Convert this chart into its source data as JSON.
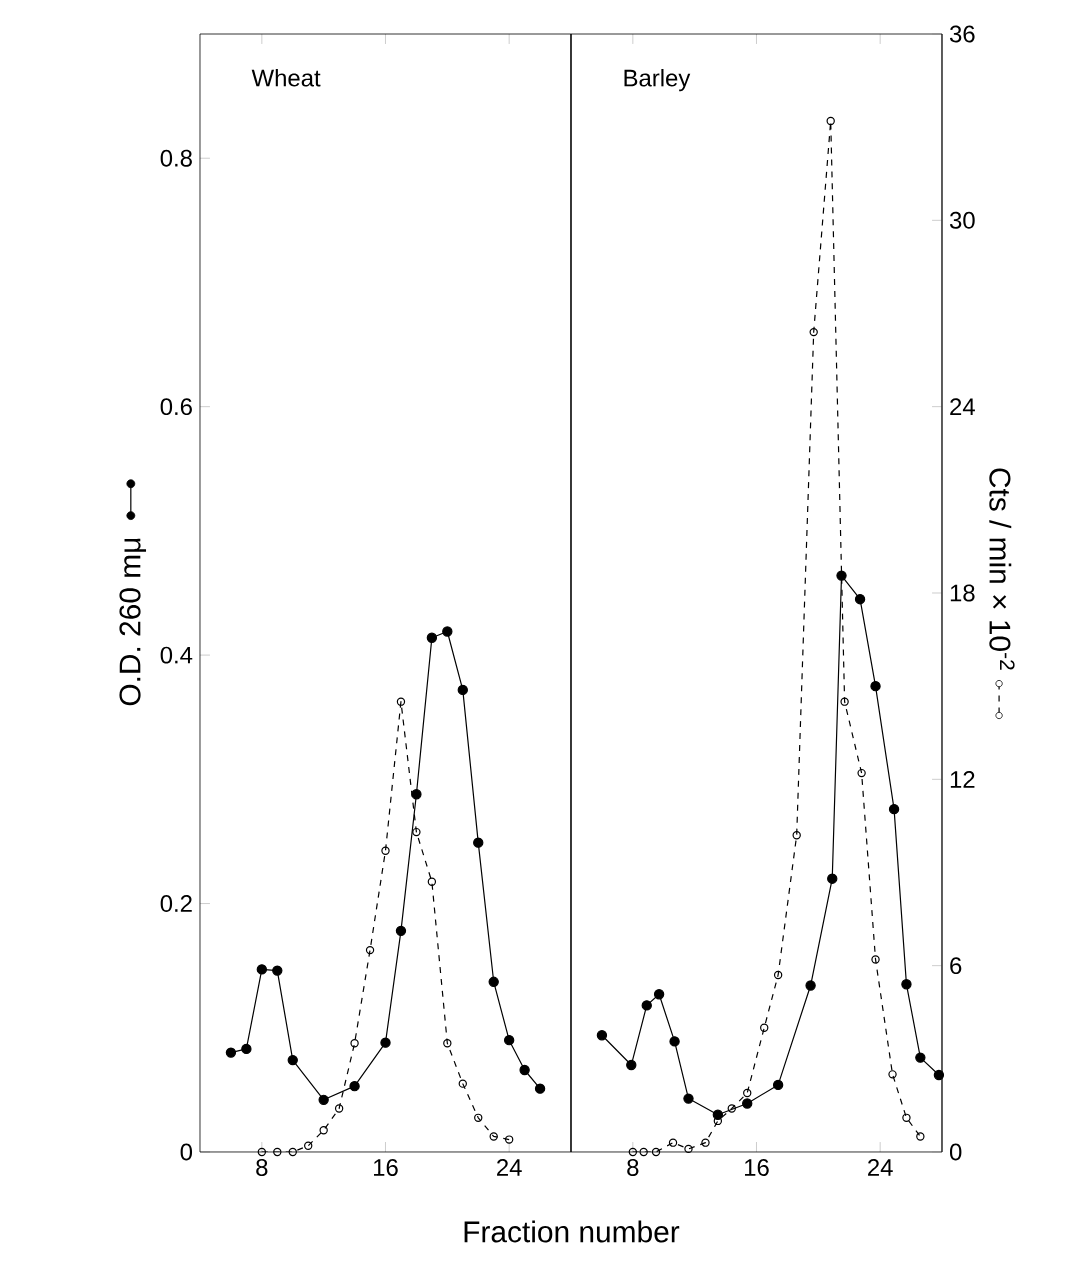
{
  "chart_data": [
    {
      "type": "line",
      "title": "Wheat",
      "xlabel": "Fraction number",
      "ylabel": "O.D. 260 mμ",
      "xlim": [
        4,
        28
      ],
      "xticks": [
        8,
        16,
        24
      ],
      "ylim": [
        0,
        0.9
      ],
      "yticks": [
        0,
        0.2,
        0.4,
        0.6,
        0.8
      ],
      "y2lim": [
        0,
        36
      ],
      "tick_labels": [
        "x",
        "y"
      ],
      "series": [
        {
          "color": "#000000",
          "marker": "circle",
          "line_style": "solid",
          "x": [
            6,
            7,
            8,
            9,
            10,
            12,
            14,
            16,
            17,
            18,
            19,
            20,
            21,
            22,
            23,
            24,
            25,
            26
          ],
          "values": [
            0.08,
            0.083,
            0.147,
            0.146,
            0.074,
            0.042,
            0.053,
            0.088,
            0.178,
            0.288,
            0.414,
            0.419,
            0.372,
            0.249,
            0.137,
            0.09,
            0.066,
            0.051
          ]
        },
        {
          "color": "#000000",
          "marker": "circle",
          "line_style": "dashed",
          "axis": "y2",
          "x": [
            8,
            9,
            10,
            11,
            12,
            13,
            14,
            15,
            16,
            17,
            18,
            19,
            20,
            21,
            22,
            23,
            24
          ],
          "values": [
            0,
            0,
            0,
            0.2,
            0.7,
            1.4,
            3.5,
            6.5,
            9.7,
            14.5,
            10.3,
            8.7,
            3.5,
            2.2,
            1.1,
            0.5,
            0.4
          ]
        }
      ]
    },
    {
      "type": "line",
      "title": "Barley",
      "y2label": "Cts / min × 10$^{-2}$",
      "xlim": [
        4,
        28
      ],
      "xticks": [
        8,
        16,
        24
      ],
      "ylim": [
        0,
        0.9
      ],
      "y2lim": [
        0,
        36
      ],
      "y2ticks": [
        0,
        6,
        12,
        18,
        24,
        30,
        36
      ],
      "tick_labels": [
        "x",
        "y2"
      ],
      "series": [
        {
          "color": "#000000",
          "marker": "circle",
          "line_style": "solid",
          "x": [
            6,
            7.9,
            8.9,
            9.7,
            10.7,
            11.6,
            13.5,
            15.4,
            17.4,
            19.5,
            20.9,
            21.5,
            22.7,
            23.7,
            24.9,
            25.7,
            26.6,
            27.8
          ],
          "values": [
            0.094,
            0.07,
            0.118,
            0.127,
            0.089,
            0.043,
            0.03,
            0.039,
            0.054,
            0.134,
            0.22,
            0.464,
            0.445,
            0.375,
            0.276,
            0.135,
            0.076,
            0.062
          ]
        },
        {
          "color": "#000000",
          "marker": "circle",
          "line_style": "dashed",
          "axis": "y2",
          "x": [
            8,
            8.7,
            9.5,
            10.6,
            11.6,
            12.7,
            13.5,
            14.4,
            15.4,
            16.5,
            17.4,
            18.6,
            19.7,
            20.8,
            21.7,
            22.8,
            23.7,
            24.8,
            25.7,
            26.6
          ],
          "values": [
            0,
            0,
            0,
            0.3,
            0.1,
            0.3,
            1.0,
            1.4,
            1.9,
            4.0,
            5.7,
            10.2,
            26.4,
            33.2,
            14.5,
            12.2,
            6.2,
            2.5,
            1.1,
            0.5
          ]
        }
      ]
    }
  ]
}
